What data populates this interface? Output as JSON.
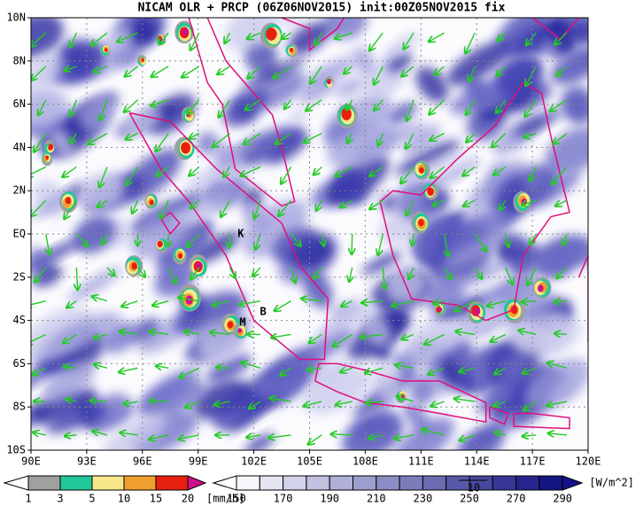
{
  "header": {
    "title": "NICAM OLR + PRCP (06Z06NOV2015) init:00Z05NOV2015 fix"
  },
  "map": {
    "lat_labels": [
      "10N",
      "8N",
      "6N",
      "4N",
      "2N",
      "EQ",
      "2S",
      "4S",
      "6S",
      "8S",
      "10S"
    ],
    "lon_labels": [
      "90E",
      "93E",
      "96E",
      "99E",
      "102E",
      "105E",
      "108E",
      "111E",
      "114E",
      "117E",
      "120E"
    ],
    "place_labels": [
      "K",
      "M",
      "B"
    ],
    "vector_reference": "10"
  },
  "precip_colorbar": {
    "labels": [
      "1",
      "3",
      "5",
      "10",
      "15",
      "20"
    ],
    "unit": "[mm/h]"
  },
  "olr_colorbar": {
    "labels": [
      "150",
      "170",
      "190",
      "210",
      "230",
      "250",
      "270",
      "290"
    ],
    "unit": "[W/m^2]"
  }
}
